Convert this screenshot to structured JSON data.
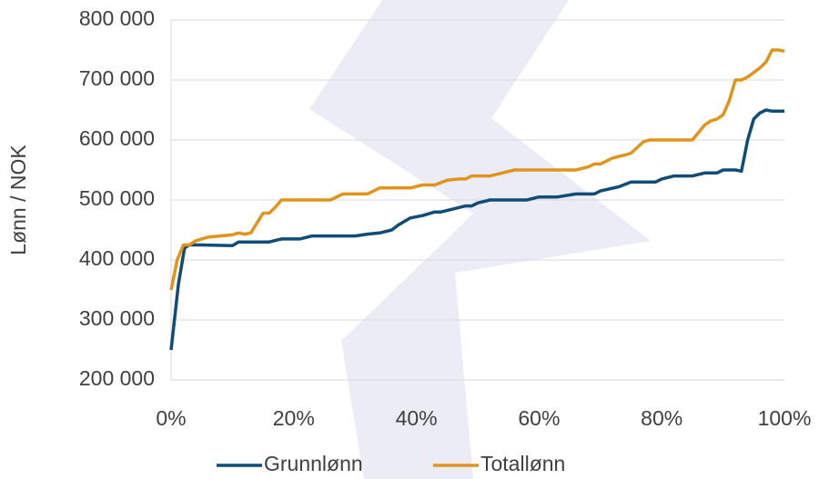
{
  "chart_data": {
    "type": "line",
    "ylabel": "Lønn / NOK",
    "xlim": [
      0,
      100
    ],
    "xticks": [
      {
        "value": 0,
        "label": "0%"
      },
      {
        "value": 20,
        "label": "20%"
      },
      {
        "value": 40,
        "label": "40%"
      },
      {
        "value": 60,
        "label": "60%"
      },
      {
        "value": 80,
        "label": "80%"
      },
      {
        "value": 100,
        "label": "100%"
      }
    ],
    "ylim": [
      200000,
      800000
    ],
    "yticks": [
      {
        "value": 200000,
        "label": "200 000"
      },
      {
        "value": 300000,
        "label": "300 000"
      },
      {
        "value": 400000,
        "label": "400 000"
      },
      {
        "value": 500000,
        "label": "500 000"
      },
      {
        "value": 600000,
        "label": "600 000"
      },
      {
        "value": 700000,
        "label": "700 000"
      },
      {
        "value": 800000,
        "label": "800 000"
      }
    ],
    "grid": true,
    "legend": "bottom",
    "series": [
      {
        "name": "Grunnlønn",
        "color": "#0f4c78",
        "x": [
          0,
          1.2,
          2.2,
          3,
          5,
          10,
          11,
          16,
          18,
          21,
          23,
          30,
          32,
          34,
          36,
          37,
          39,
          41,
          43,
          44,
          46,
          48,
          49,
          50,
          52,
          58,
          60,
          63,
          66,
          69,
          70,
          73,
          75,
          79,
          80,
          82,
          85,
          87,
          89,
          90,
          92,
          93,
          94,
          95,
          96,
          97,
          98,
          100
        ],
        "values": [
          250000,
          360000,
          420000,
          425000,
          425000,
          424000,
          430000,
          430000,
          435000,
          435000,
          440000,
          440000,
          443000,
          445000,
          450000,
          458000,
          470000,
          474000,
          480000,
          480000,
          485000,
          490000,
          490000,
          495000,
          500000,
          500000,
          505000,
          505000,
          510000,
          510000,
          515000,
          522000,
          530000,
          530000,
          535000,
          540000,
          540000,
          545000,
          545000,
          550000,
          550000,
          548000,
          600000,
          635000,
          645000,
          650000,
          648000,
          648000
        ]
      },
      {
        "name": "Totallønn",
        "color": "#e0941c",
        "x": [
          0,
          1,
          2,
          3,
          4,
          6,
          8,
          10,
          11,
          12,
          13,
          15,
          16,
          17,
          18,
          20,
          26,
          28,
          30,
          32,
          34,
          39,
          41,
          43,
          45,
          47,
          48,
          49,
          52,
          56,
          66,
          68,
          69,
          70,
          72,
          74,
          75,
          77,
          78,
          80,
          85,
          87,
          88,
          89,
          90,
          91,
          92,
          93,
          94,
          96,
          97,
          98,
          99,
          100
        ],
        "values": [
          350000,
          400000,
          425000,
          425000,
          432000,
          438000,
          440000,
          442000,
          445000,
          443000,
          445000,
          478000,
          478000,
          488000,
          500000,
          500000,
          500000,
          510000,
          510000,
          510000,
          520000,
          520000,
          525000,
          525000,
          533000,
          535000,
          535000,
          540000,
          540000,
          550000,
          550000,
          555000,
          560000,
          560000,
          570000,
          575000,
          578000,
          597000,
          600000,
          600000,
          600000,
          625000,
          632000,
          635000,
          642000,
          665000,
          700000,
          700000,
          705000,
          720000,
          730000,
          750000,
          750000,
          748000
        ]
      }
    ]
  }
}
